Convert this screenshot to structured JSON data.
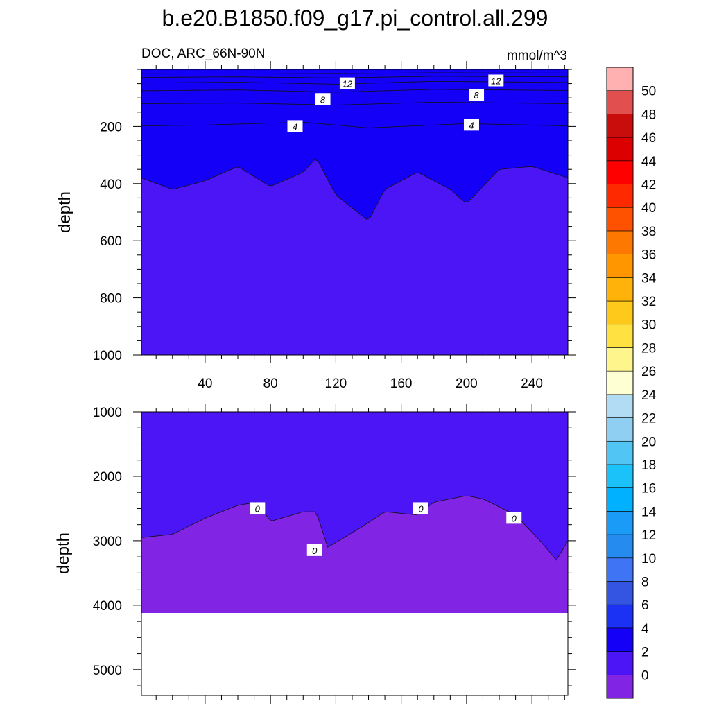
{
  "chart_data": {
    "type": "heatmap",
    "title": "b.e20.B1850.f09_g17.pi_control.all.299",
    "subtitle_left": "DOC, ARC_66N-90N",
    "subtitle_right": "mmol/m^3",
    "ylabel": "depth",
    "xlim": [
      1,
      262
    ],
    "xticks": [
      40,
      80,
      120,
      160,
      200,
      240
    ],
    "upper_panel": {
      "ylim": [
        0,
        1000
      ],
      "yticks": [
        200,
        400,
        600,
        800,
        1000
      ],
      "contours": [
        {
          "level": 14,
          "depth_at_x": [
            [
              1,
              14
            ],
            [
              60,
              13
            ],
            [
              120,
              15
            ],
            [
              180,
              12
            ],
            [
              262,
              13
            ]
          ]
        },
        {
          "level": 12,
          "depth_at_x": [
            [
              1,
              28
            ],
            [
              60,
              26
            ],
            [
              120,
              30
            ],
            [
              180,
              24
            ],
            [
              262,
              26
            ]
          ]
        },
        {
          "level": 10,
          "depth_at_x": [
            [
              1,
              48
            ],
            [
              60,
              45
            ],
            [
              120,
              52
            ],
            [
              180,
              42
            ],
            [
              262,
              46
            ]
          ]
        },
        {
          "level": 8,
          "depth_at_x": [
            [
              1,
              75
            ],
            [
              60,
              72
            ],
            [
              120,
              80
            ],
            [
              180,
              70
            ],
            [
              262,
              74
            ]
          ]
        },
        {
          "level": 6,
          "depth_at_x": [
            [
              1,
              120
            ],
            [
              60,
              118
            ],
            [
              120,
              125
            ],
            [
              180,
              115
            ],
            [
              262,
              120
            ]
          ]
        },
        {
          "level": 4,
          "depth_at_x": [
            [
              1,
              198
            ],
            [
              40,
              195
            ],
            [
              100,
              185
            ],
            [
              140,
              205
            ],
            [
              200,
              190
            ],
            [
              262,
              198
            ]
          ]
        },
        {
          "level": 2,
          "depth_at_x": [
            [
              1,
              380
            ],
            [
              20,
              420
            ],
            [
              40,
              390
            ],
            [
              60,
              340
            ],
            [
              80,
              410
            ],
            [
              100,
              360
            ],
            [
              108,
              310
            ],
            [
              120,
              440
            ],
            [
              140,
              530
            ],
            [
              150,
              420
            ],
            [
              170,
              360
            ],
            [
              190,
              420
            ],
            [
              200,
              470
            ],
            [
              220,
              350
            ],
            [
              240,
              340
            ],
            [
              262,
              380
            ]
          ]
        }
      ],
      "contour_labels": [
        {
          "text": "12",
          "x": 127,
          "depth": 50
        },
        {
          "text": "12",
          "x": 218,
          "depth": 40
        },
        {
          "text": "8",
          "x": 112,
          "depth": 105
        },
        {
          "text": "8",
          "x": 206,
          "depth": 90
        },
        {
          "text": "4",
          "x": 95,
          "depth": 200
        },
        {
          "text": "4",
          "x": 203,
          "depth": 195
        }
      ]
    },
    "lower_panel": {
      "ylim": [
        1000,
        5400
      ],
      "yticks": [
        1000,
        2000,
        3000,
        4000,
        5000
      ],
      "bottom_depth": 4120,
      "contours": [
        {
          "level": 0,
          "depth_at_x": [
            [
              1,
              2950
            ],
            [
              20,
              2900
            ],
            [
              40,
              2650
            ],
            [
              60,
              2450
            ],
            [
              72,
              2400
            ],
            [
              80,
              2700
            ],
            [
              100,
              2550
            ],
            [
              108,
              2550
            ],
            [
              115,
              3100
            ],
            [
              135,
              2800
            ],
            [
              150,
              2550
            ],
            [
              170,
              2600
            ],
            [
              180,
              2400
            ],
            [
              200,
              2300
            ],
            [
              210,
              2350
            ],
            [
              230,
              2600
            ],
            [
              245,
              3000
            ],
            [
              255,
              3300
            ],
            [
              262,
              3000
            ]
          ]
        }
      ],
      "contour_labels": [
        {
          "text": "0",
          "x": 72,
          "depth": 2500
        },
        {
          "text": "0",
          "x": 107,
          "depth": 3150
        },
        {
          "text": "0",
          "x": 172,
          "depth": 2500
        },
        {
          "text": "0",
          "x": 229,
          "depth": 2650
        }
      ]
    },
    "colorbar": {
      "labels": [
        "0",
        "2",
        "4",
        "6",
        "8",
        "10",
        "12",
        "14",
        "16",
        "18",
        "20",
        "22",
        "24",
        "26",
        "28",
        "30",
        "32",
        "34",
        "36",
        "38",
        "40",
        "42",
        "44",
        "46",
        "48",
        "50"
      ],
      "colors": [
        "#8224e3",
        "#4b15f5",
        "#1400f7",
        "#1b31f3",
        "#3355e2",
        "#3f74f5",
        "#258bef",
        "#1a9bf7",
        "#00b1ff",
        "#1bc2fa",
        "#51c6f5",
        "#8fcff1",
        "#b2dcf3",
        "#ffffd4",
        "#fff58d",
        "#ffe141",
        "#ffc91c",
        "#ffb30a",
        "#ff9600",
        "#fc7800",
        "#ff5200",
        "#ff2900",
        "#ff0000",
        "#dc0000",
        "#c90d0d",
        "#e14f4f",
        "#ffb1b1"
      ]
    }
  }
}
